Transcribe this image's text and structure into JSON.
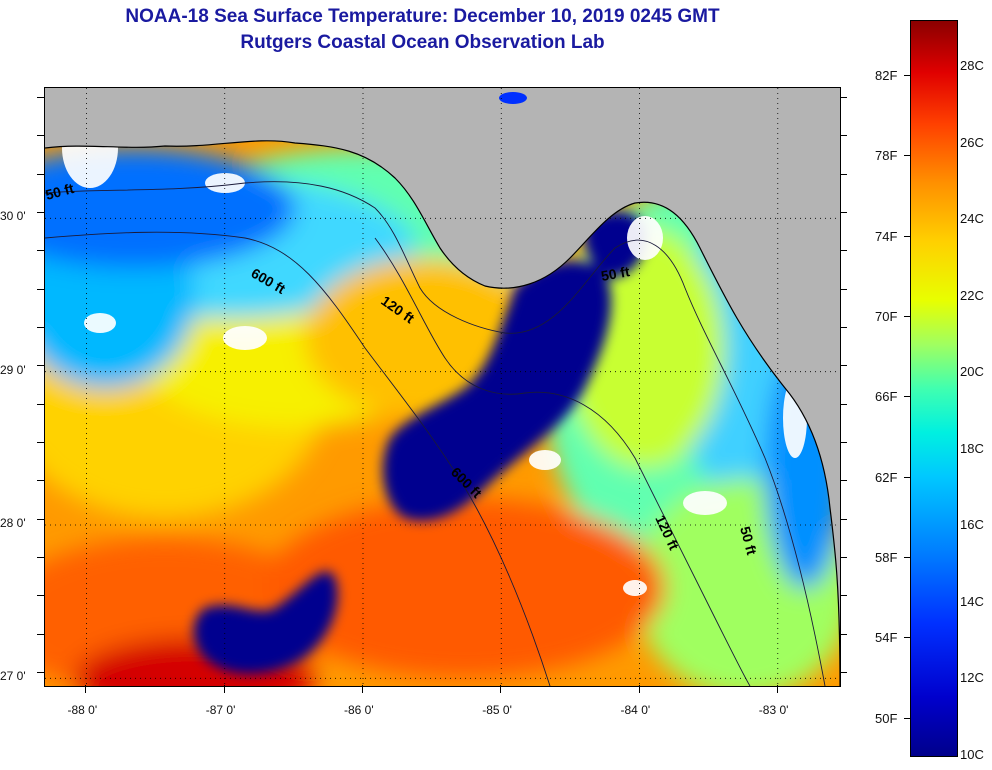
{
  "title": {
    "line1": "NOAA-18 Sea Surface Temperature:  December 10, 2019 0245 GMT",
    "line2": "Rutgers Coastal Ocean Observation Lab"
  },
  "map": {
    "lon_range": [
      -88.3,
      -82.55
    ],
    "lat_range": [
      26.95,
      30.85
    ],
    "lon_ticks": [
      "-88 0'",
      "-87 0'",
      "-86 0'",
      "-85 0'",
      "-84 0'",
      "-83 0'"
    ],
    "lon_values": [
      -88,
      -87,
      -86,
      -85,
      -84,
      -83
    ],
    "lat_ticks": [
      "30 0'",
      "29 0'",
      "28 0'",
      "27 0'"
    ],
    "lat_values": [
      30,
      29,
      28,
      27
    ],
    "contour_labels": [
      "50 ft",
      "600 ft",
      "120 ft",
      "600 ft",
      "50 ft",
      "120 ft",
      "50 ft"
    ],
    "colors": {
      "land": "#b4b4b4",
      "cloud": "#ffffff",
      "gridline": "#000000"
    }
  },
  "colorbar": {
    "fahrenheit": [
      "82F",
      "78F",
      "74F",
      "70F",
      "66F",
      "62F",
      "58F",
      "54F",
      "50F"
    ],
    "celsius": [
      "28C",
      "26C",
      "24C",
      "22C",
      "20C",
      "18C",
      "16C",
      "14C",
      "12C",
      "10C"
    ]
  }
}
